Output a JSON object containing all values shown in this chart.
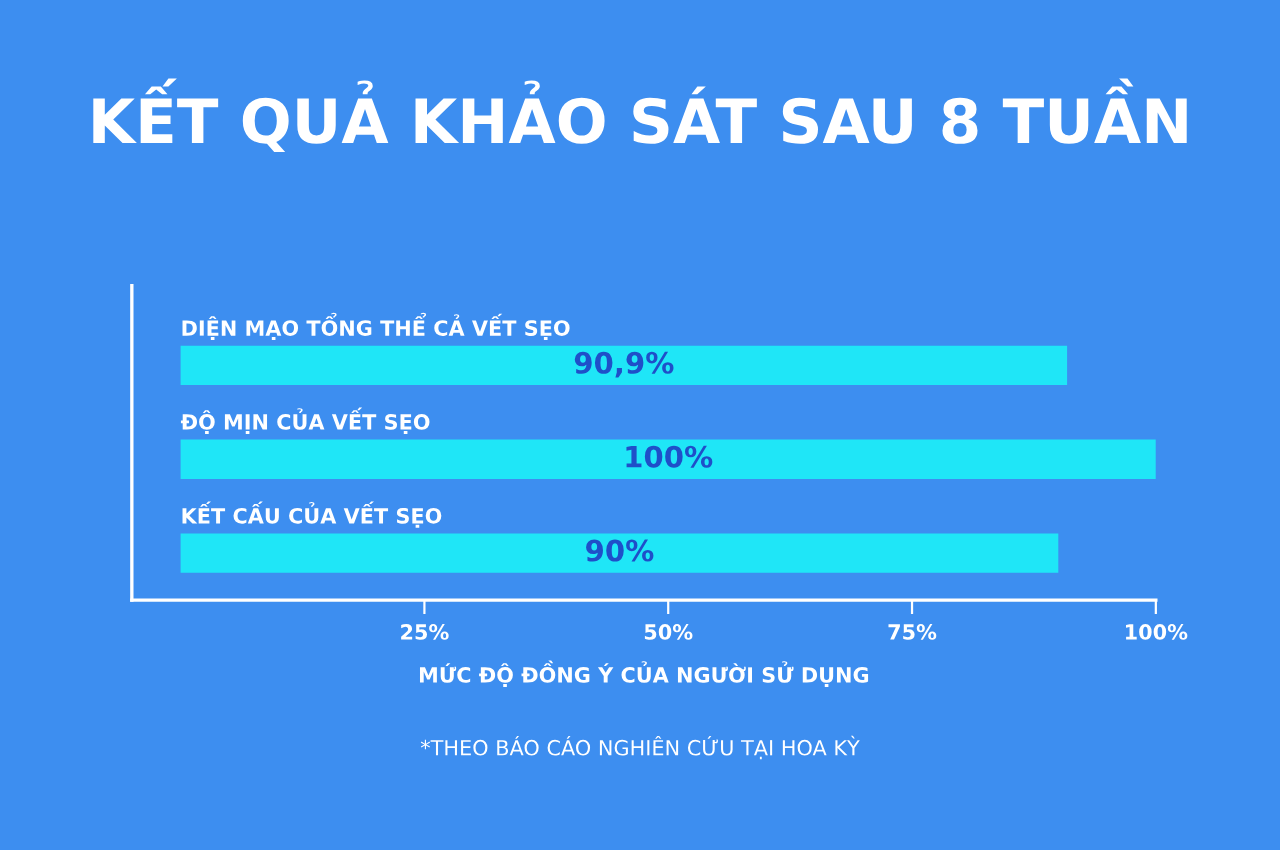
{
  "chart_data": {
    "type": "bar",
    "orientation": "horizontal",
    "title": "KẾT QUẢ KHẢO SÁT SAU 8 TUẦN",
    "categories": [
      "DIỆN MẠO TỔNG THỂ CẢ VẾT SẸO",
      "ĐỘ MỊN CỦA VẾT SẸO",
      "KẾT CẤU CỦA VẾT SẸO"
    ],
    "values": [
      90.9,
      100,
      90
    ],
    "value_labels": [
      "90,9%",
      "100%",
      "90%"
    ],
    "color": "#1fe6f7",
    "xlim": [
      -5,
      100
    ],
    "xticks": [
      {
        "value": 25,
        "label": "25%"
      },
      {
        "value": 50,
        "label": "50%"
      },
      {
        "value": 75,
        "label": "75%"
      },
      {
        "value": 100,
        "label": "100%"
      }
    ],
    "xlabel": "MỨC ĐỘ ĐỒNG Ý CỦA NGƯỜI SỬ DỤNG",
    "grid": false,
    "tick_labels": "x",
    "annotations": [
      "*THEO BÁO CÁO NGHIÊN CỨU TẠI HOA KỲ"
    ]
  }
}
